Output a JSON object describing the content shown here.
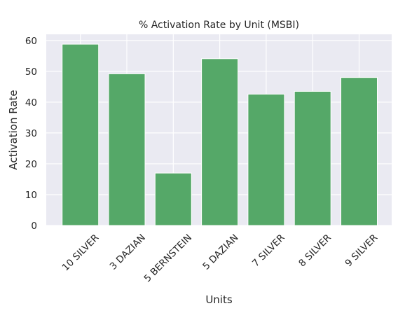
{
  "chart_data": {
    "type": "bar",
    "title": "% Activation Rate by Unit (MSBI)",
    "xlabel": "Units",
    "ylabel": "Activation Rate",
    "categories": [
      "10 SILVER",
      "3 DAZIAN",
      "5 BERNSTEIN",
      "5 DAZIAN",
      "7 SILVER",
      "8 SILVER",
      "9 SILVER"
    ],
    "values": [
      58.8,
      49.2,
      17.0,
      54.1,
      42.6,
      43.5,
      48.0
    ],
    "ylim": [
      0,
      62
    ],
    "yticks": [
      0,
      10,
      20,
      30,
      40,
      50,
      60
    ],
    "grid": true,
    "legend": "none",
    "colors": {
      "bar": "#55a868",
      "plot_background": "#eaeaf2",
      "grid": "#ffffff"
    }
  }
}
